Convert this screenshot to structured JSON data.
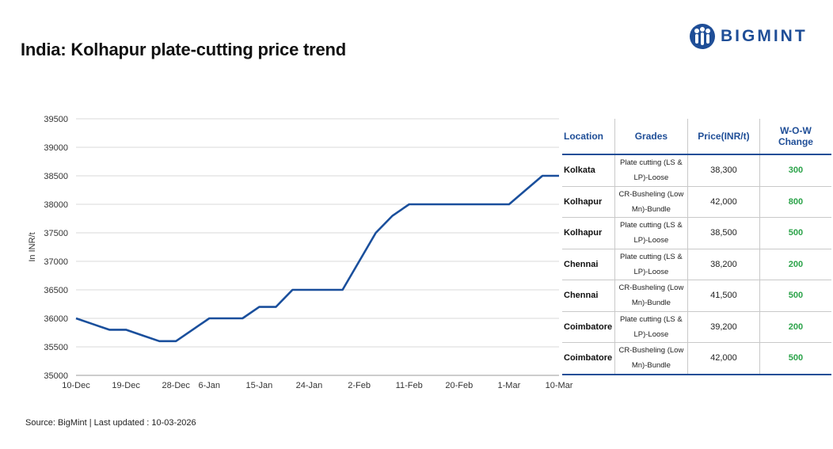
{
  "header": {
    "title": "India: Kolhapur plate-cutting price trend",
    "logo_text": "BIGMINT",
    "brand_color": "#1f4e97"
  },
  "chart_data": {
    "type": "line",
    "title": "",
    "xlabel": "",
    "ylabel": "In INR/t",
    "ylim": [
      35000,
      39500
    ],
    "y_ticks": [
      35000,
      35500,
      36000,
      36500,
      37000,
      37500,
      38000,
      38500,
      39000,
      39500
    ],
    "x_tick_labels": [
      "10-Dec",
      "19-Dec",
      "28-Dec",
      "6-Jan",
      "15-Jan",
      "24-Jan",
      "2-Feb",
      "11-Feb",
      "20-Feb",
      "1-Mar",
      "10-Mar"
    ],
    "x": [
      "10-Dec",
      "14-Dec",
      "17-Dec",
      "21-Dec",
      "24-Dec",
      "27-Dec",
      "30-Dec",
      "3-Jan",
      "6-Jan",
      "9-Jan",
      "12-Jan",
      "15-Jan",
      "18-Jan",
      "21-Jan",
      "24-Jan",
      "27-Jan",
      "30-Jan",
      "2-Feb",
      "5-Feb",
      "8-Feb",
      "11-Feb",
      "14-Feb",
      "17-Feb",
      "20-Feb",
      "23-Feb",
      "26-Feb",
      "1-Mar",
      "4-Mar",
      "7-Mar",
      "10-Mar"
    ],
    "series": [
      {
        "color": "#1a4f9c",
        "values": [
          36000,
          35900,
          35800,
          35800,
          35700,
          35600,
          35600,
          35800,
          36000,
          36000,
          36000,
          36200,
          36200,
          36500,
          36500,
          36500,
          36500,
          37000,
          37500,
          37800,
          38000,
          38000,
          38000,
          38000,
          38000,
          38000,
          38000,
          38250,
          38500,
          38500
        ]
      }
    ],
    "grid": true
  },
  "table": {
    "headers": [
      "Location",
      "Grades",
      "Price(INR/t)",
      "W-O-W Change"
    ],
    "rows": [
      {
        "location": "Kolkata",
        "grade": "Plate cutting (LS & LP)-Loose",
        "price": "38,300",
        "change": "300"
      },
      {
        "location": "Kolhapur",
        "grade": "CR-Busheling (Low Mn)-Bundle",
        "price": "42,000",
        "change": "800"
      },
      {
        "location": "Kolhapur",
        "grade": "Plate cutting (LS & LP)-Loose",
        "price": "38,500",
        "change": "500"
      },
      {
        "location": "Chennai",
        "grade": "Plate cutting (LS & LP)-Loose",
        "price": "38,200",
        "change": "200"
      },
      {
        "location": "Chennai",
        "grade": "CR-Busheling (Low Mn)-Bundle",
        "price": "41,500",
        "change": "500"
      },
      {
        "location": "Coimbatore",
        "grade": "Plate cutting (LS & LP)-Loose",
        "price": "39,200",
        "change": "200"
      },
      {
        "location": "Coimbatore",
        "grade": "CR-Busheling (Low Mn)-Bundle",
        "price": "42,000",
        "change": "500"
      }
    ],
    "change_color": "#2ca34a"
  },
  "footer": {
    "source": "Source: BigMint | Last updated : 10-03-2026"
  }
}
